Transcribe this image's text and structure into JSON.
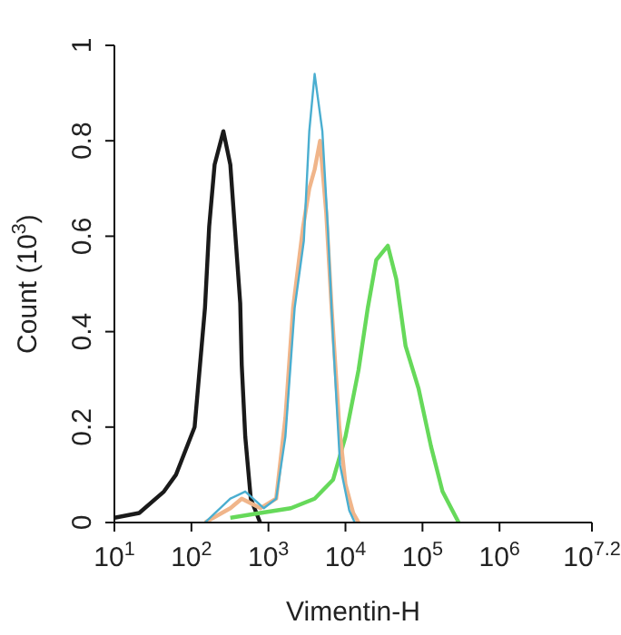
{
  "chart_data": {
    "type": "line",
    "xlabel": "Vimentin-H",
    "ylabel": "Count (10$^{3}$)",
    "log": "x",
    "xlim": [
      10,
      15848931.92
    ],
    "xticks": [
      {
        "value": 10,
        "label": "10$^{1}$"
      },
      {
        "value": 100,
        "label": "10$^{2}$"
      },
      {
        "value": 1000,
        "label": "10$^{3}$"
      },
      {
        "value": 10000,
        "label": "10$^{4}$"
      },
      {
        "value": 100000,
        "label": "10$^{5}$"
      },
      {
        "value": 1000000,
        "label": "10$^{6}$"
      },
      {
        "value": 15848931.92,
        "label": "10$^{7.2}$"
      }
    ],
    "ylim": [
      0,
      1
    ],
    "yticks": [
      0,
      0.2,
      0.4,
      0.6,
      0.8,
      1
    ],
    "grid": false,
    "legend": false,
    "marker": "none",
    "line_style": "solid",
    "series": [
      {
        "color": "#1a1a1a",
        "x": [
          10,
          21,
          44,
          63,
          110,
          150,
          170,
          200,
          260,
          320,
          430,
          450,
          500,
          590,
          780
        ],
        "values": [
          0.01,
          0.02,
          0.065,
          0.1,
          0.2,
          0.45,
          0.62,
          0.75,
          0.82,
          0.75,
          0.46,
          0.33,
          0.18,
          0.05,
          0
        ]
      },
      {
        "color": "#66d95a",
        "x": [
          320,
          780,
          1950,
          3980,
          6920,
          10000,
          14800,
          19500,
          25100,
          35500,
          45700,
          60300,
          89100,
          128800,
          182000,
          295000
        ],
        "values": [
          0.01,
          0.02,
          0.03,
          0.05,
          0.09,
          0.18,
          0.32,
          0.45,
          0.55,
          0.58,
          0.51,
          0.37,
          0.28,
          0.16,
          0.065,
          0
        ]
      },
      {
        "color": "#f0b58a",
        "x": [
          150,
          320,
          450,
          790,
          1260,
          1660,
          2090,
          2820,
          3390,
          3980,
          4680,
          5620,
          6610,
          8320,
          10000,
          12600,
          14800
        ],
        "values": [
          0,
          0.03,
          0.05,
          0.03,
          0.05,
          0.22,
          0.45,
          0.62,
          0.7,
          0.74,
          0.8,
          0.65,
          0.45,
          0.2,
          0.08,
          0.02,
          0
        ]
      },
      {
        "color": "#4aaed0",
        "x": [
          150,
          320,
          500,
          870,
          1260,
          1660,
          2190,
          2880,
          3390,
          3980,
          5010,
          5890,
          6920,
          8510,
          11200,
          13200
        ],
        "values": [
          0,
          0.05,
          0.065,
          0.03,
          0.05,
          0.18,
          0.45,
          0.59,
          0.82,
          0.94,
          0.82,
          0.62,
          0.38,
          0.12,
          0.025,
          0
        ]
      }
    ]
  }
}
